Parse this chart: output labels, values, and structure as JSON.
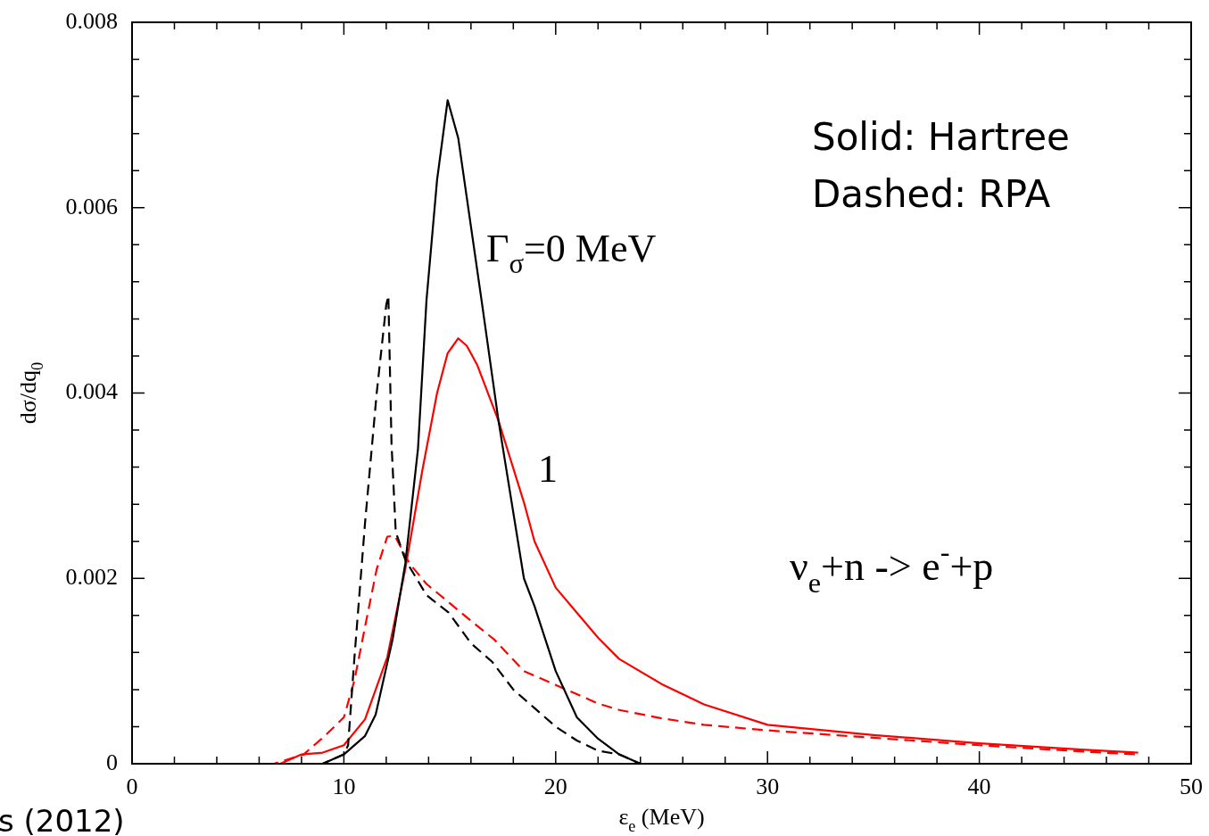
{
  "chart_data": {
    "type": "line",
    "xlabel": "ε$_{e}$ (MeV)",
    "ylabel": "dσ/dq$_{0}$",
    "xlim": [
      0,
      50
    ],
    "ylim": [
      0,
      0.008
    ],
    "xticks": [
      0,
      {
        "value": 2,
        "label": null
      },
      {
        "value": 4,
        "label": null
      },
      {
        "value": 6,
        "label": null
      },
      {
        "value": 8,
        "label": null
      },
      10,
      {
        "value": 12,
        "label": null
      },
      {
        "value": 14,
        "label": null
      },
      {
        "value": 16,
        "label": null
      },
      {
        "value": 18,
        "label": null
      },
      20,
      {
        "value": 22,
        "label": null
      },
      {
        "value": 24,
        "label": null
      },
      {
        "value": 26,
        "label": null
      },
      {
        "value": 28,
        "label": null
      },
      30,
      {
        "value": 32,
        "label": null
      },
      {
        "value": 34,
        "label": null
      },
      {
        "value": 36,
        "label": null
      },
      {
        "value": 38,
        "label": null
      },
      40,
      {
        "value": 42,
        "label": null
      },
      {
        "value": 44,
        "label": null
      },
      {
        "value": 46,
        "label": null
      },
      {
        "value": 48,
        "label": null
      },
      50
    ],
    "yticks": [
      0,
      {
        "value": 0.0004,
        "label": null
      },
      {
        "value": 0.0008,
        "label": null
      },
      {
        "value": 0.0012,
        "label": null
      },
      {
        "value": 0.0016,
        "label": null
      },
      0.002,
      {
        "value": 0.0024,
        "label": null
      },
      {
        "value": 0.0028,
        "label": null
      },
      {
        "value": 0.0032,
        "label": null
      },
      {
        "value": 0.0036,
        "label": null
      },
      0.004,
      {
        "value": 0.0044,
        "label": null
      },
      {
        "value": 0.0048,
        "label": null
      },
      {
        "value": 0.0052,
        "label": null
      },
      {
        "value": 0.0056,
        "label": null
      },
      0.006,
      {
        "value": 0.0064,
        "label": null
      },
      {
        "value": 0.0068,
        "label": null
      },
      {
        "value": 0.0072,
        "label": null
      },
      {
        "value": 0.0076,
        "label": null
      },
      0.008
    ],
    "grid": false,
    "legend": false,
    "marker": "none",
    "series": [
      {
        "color": "#000000",
        "line_style": "solid",
        "x": [
          0,
          9,
          10,
          11,
          11.5,
          12.3,
          12.9,
          13.5,
          13.9,
          14.4,
          14.9,
          15.4,
          16.5,
          17.3,
          18.5,
          19,
          20,
          21,
          22,
          23,
          24,
          25,
          27,
          47.5
        ],
        "values": [
          0,
          0,
          0.0001,
          0.0003,
          0.00053,
          0.00134,
          0.00216,
          0.0034,
          0.005,
          0.0063,
          0.00716,
          0.00675,
          0.005,
          0.0037,
          0.002,
          0.0017,
          0.001,
          0.0005,
          0.00027,
          0.0001,
          0,
          0,
          0,
          0
        ]
      },
      {
        "color": "#000000",
        "line_style": "dashed",
        "x": [
          0,
          8.5,
          9,
          10,
          10.2,
          10.5,
          11,
          11.55,
          12,
          12.1,
          12.25,
          12.45,
          12.9,
          13.9,
          14.95,
          16,
          17,
          18,
          19,
          20,
          21,
          22,
          23,
          24,
          25,
          27,
          47.5
        ],
        "values": [
          0,
          0,
          0,
          0.0001,
          0.0002,
          0.00115,
          0.0026,
          0.004,
          0.00495,
          0.00505,
          0.00345,
          0.0025,
          0.0022,
          0.00182,
          0.00163,
          0.0013,
          0.0011,
          0.0008,
          0.0006,
          0.0004,
          0.00025,
          0.00014,
          0.0001,
          0,
          0,
          0,
          0
        ]
      },
      {
        "color": "#ff0000",
        "line_style": "solid",
        "x": [
          0,
          5,
          7,
          8,
          9,
          10,
          11,
          12.05,
          12.9,
          13.7,
          14.4,
          14.9,
          15.4,
          15.8,
          16.3,
          17.3,
          18.5,
          19,
          20,
          21,
          22,
          23,
          25,
          27,
          30,
          35,
          40,
          45,
          47.5
        ],
        "values": [
          0,
          0,
          0,
          0.0001,
          0.00012,
          0.0002,
          0.00048,
          0.00115,
          0.0021,
          0.00316,
          0.004,
          0.00443,
          0.00459,
          0.00451,
          0.0043,
          0.0037,
          0.00282,
          0.0024,
          0.0019,
          0.00163,
          0.00136,
          0.00113,
          0.00086,
          0.00064,
          0.00042,
          0.00031,
          0.00022,
          0.00015,
          0.00012
        ]
      },
      {
        "color": "#ff0000",
        "line_style": "dashed",
        "x": [
          0,
          5,
          6.7,
          8.1,
          9.1,
          10,
          10.5,
          11,
          11.55,
          12.05,
          12.4,
          13.1,
          13.9,
          14.8,
          15.8,
          17.1,
          18.5,
          19,
          20,
          21,
          22,
          23,
          25,
          27,
          30,
          35,
          40,
          45,
          47.5
        ],
        "values": [
          0,
          0,
          0,
          0.0001,
          0.0003,
          0.0005,
          0.0009,
          0.00148,
          0.0021,
          0.00245,
          0.00246,
          0.00216,
          0.00194,
          0.00177,
          0.00158,
          0.00134,
          0.001,
          0.00095,
          0.00085,
          0.00075,
          0.00065,
          0.00058,
          0.00049,
          0.00042,
          0.00036,
          0.00028,
          0.0002,
          0.00013,
          0.0001
        ]
      }
    ],
    "annotations": [
      "Γ$_{σ}$=0 MeV",
      "1",
      "Solid: Hartree",
      "Dashed: RPA",
      "ν$_{e}$+n -> e$^{-}$+p",
      "s (2012)"
    ]
  }
}
